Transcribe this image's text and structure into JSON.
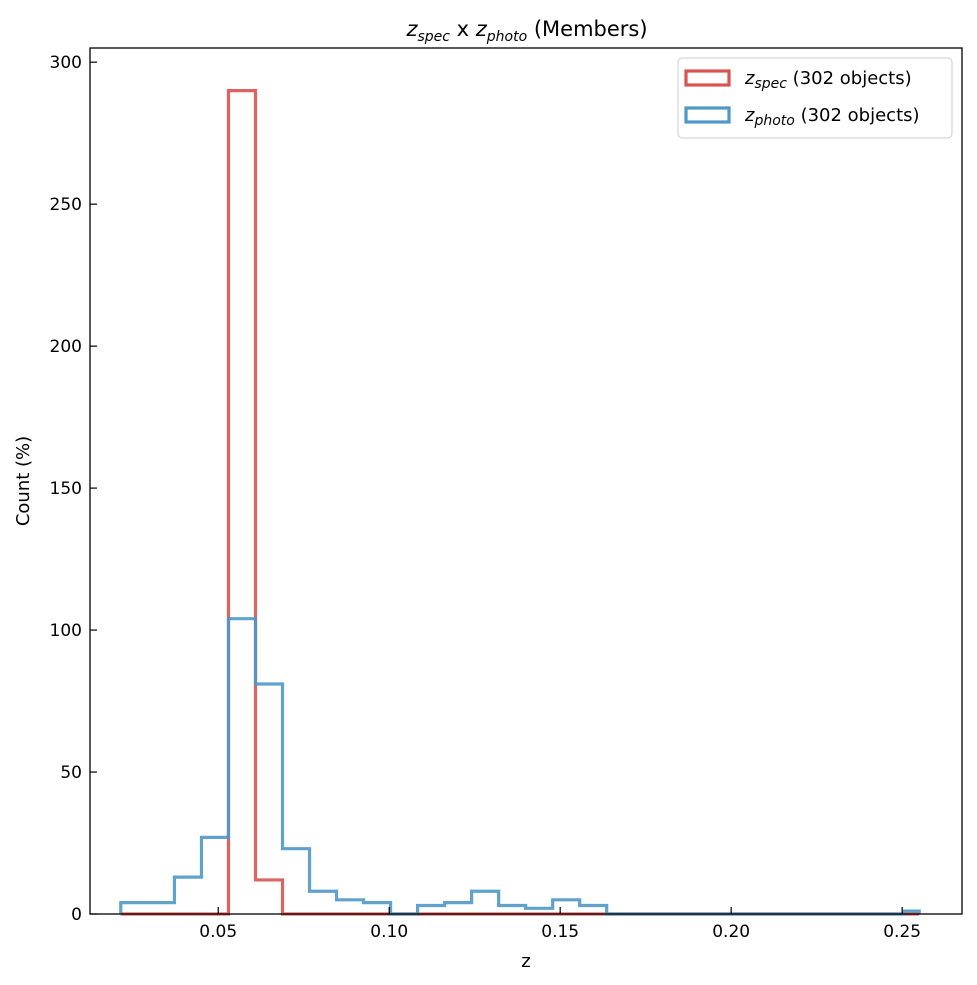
{
  "chart_data": {
    "type": "histogram",
    "title": {
      "var1": "z",
      "sub1": "spec",
      "sep": " x ",
      "var2": "z",
      "sub2": "photo",
      "rest": " (Members)"
    },
    "xlabel": "z",
    "ylabel": "Count (%)",
    "xlim": [
      0.0125,
      0.2675
    ],
    "ylim": [
      0,
      305
    ],
    "xticks": [
      0.05,
      0.1,
      0.15,
      0.2,
      0.25
    ],
    "xtick_labels": [
      "0.05",
      "0.10",
      "0.15",
      "0.20",
      "0.25"
    ],
    "yticks": [
      0,
      50,
      100,
      150,
      200,
      250,
      300
    ],
    "ytick_labels": [
      "0",
      "50",
      "100",
      "150",
      "200",
      "250",
      "300"
    ],
    "histtype": "step",
    "tick_direction": "in",
    "legend_position": "top-right",
    "series": [
      {
        "key": "spec",
        "legend_var": "z",
        "legend_sub": "spec",
        "legend_suffix": " (302 objects)",
        "color": "#d9534f",
        "bin_edges": [
          0.0215,
          0.0293,
          0.0372,
          0.0451,
          0.053,
          0.0609,
          0.0688,
          0.0767,
          0.0846,
          0.0925,
          0.1004,
          0.1083,
          0.1162,
          0.1241,
          0.132,
          0.1399,
          0.1478,
          0.1557,
          0.1636,
          0.1715,
          0.1794,
          0.1873,
          0.1952,
          0.2031,
          0.211,
          0.2189,
          0.2268,
          0.2347,
          0.2426,
          0.2505,
          0.255
        ],
        "counts": [
          0,
          0,
          0,
          0,
          290,
          12,
          0,
          0,
          0,
          0,
          0,
          0,
          0,
          0,
          0,
          0,
          0,
          0,
          0,
          0,
          0,
          0,
          0,
          0,
          0,
          0,
          0,
          0,
          0,
          0
        ]
      },
      {
        "key": "photo",
        "legend_var": "z",
        "legend_sub": "photo",
        "legend_suffix": " (302 objects)",
        "color": "#4f98c6",
        "bin_edges": [
          0.0215,
          0.0293,
          0.0372,
          0.0451,
          0.053,
          0.0609,
          0.0688,
          0.0767,
          0.0846,
          0.0925,
          0.1004,
          0.1083,
          0.1162,
          0.1241,
          0.132,
          0.1399,
          0.1478,
          0.1557,
          0.1636,
          0.1715,
          0.1794,
          0.1873,
          0.1952,
          0.2031,
          0.211,
          0.2189,
          0.2268,
          0.2347,
          0.2426,
          0.2505,
          0.255
        ],
        "counts": [
          4,
          4,
          13,
          27,
          104,
          81,
          23,
          8,
          5,
          4,
          0,
          3,
          4,
          8,
          3,
          2,
          5,
          3,
          0,
          0,
          0,
          0,
          0,
          0,
          0,
          0,
          0,
          0,
          0,
          1
        ]
      }
    ]
  }
}
